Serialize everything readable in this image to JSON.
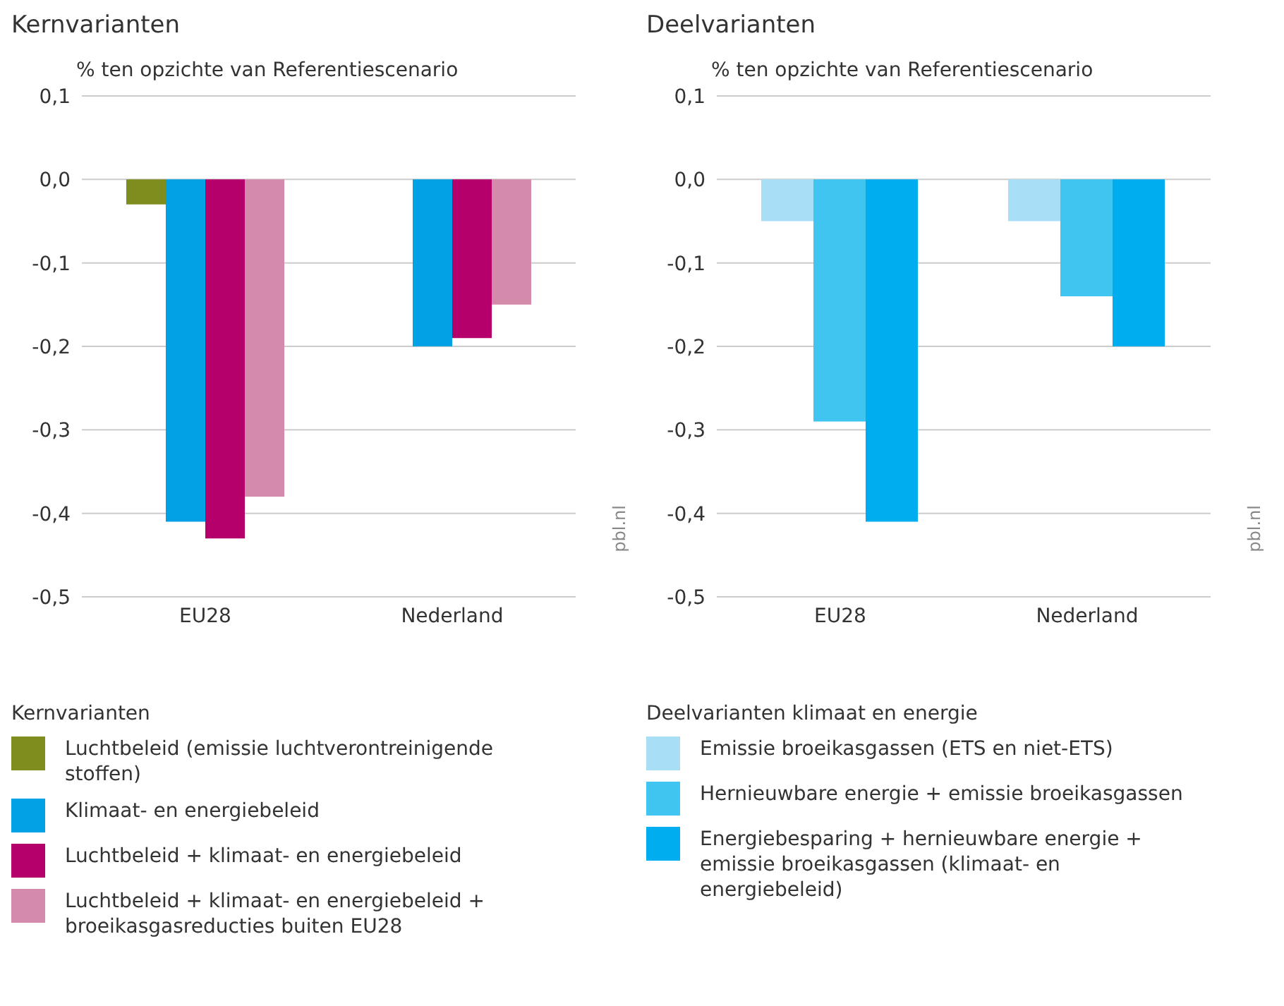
{
  "chart_data": [
    {
      "type": "bar",
      "title": "Kernvarianten",
      "ylabel": "% ten opzichte van Referentiescenario",
      "categories": [
        "EU28",
        "Nederland"
      ],
      "ylim": [
        -0.5,
        0.1
      ],
      "yticks": [
        {
          "value": -0.5,
          "label": "-0,5"
        },
        {
          "value": -0.4,
          "label": "-0,4"
        },
        {
          "value": -0.3,
          "label": "-0,3"
        },
        {
          "value": -0.2,
          "label": "-0,2"
        },
        {
          "value": -0.1,
          "label": "-0,1"
        },
        {
          "value": 0,
          "label": "0,0"
        },
        {
          "value": 0.1,
          "label": "0,1"
        }
      ],
      "grid": "y",
      "legend": "bottom",
      "legend_title": "Kernvarianten",
      "annotations": [
        "pbl.nl"
      ],
      "series": [
        {
          "name": "Luchtbeleid (emissie luchtverontreinigende stoffen)",
          "color": "#7f8c1e",
          "values": [
            -0.03,
            null
          ]
        },
        {
          "name": "Klimaat- en energiebeleid",
          "color": "#00a2e5",
          "values": [
            -0.41,
            -0.2
          ]
        },
        {
          "name": "Luchtbeleid + klimaat- en energiebeleid",
          "color": "#b5006b",
          "values": [
            -0.43,
            -0.19
          ]
        },
        {
          "name": "Luchtbeleid + klimaat- en energiebeleid + broeikasgasreducties buiten EU28",
          "color": "#d48aab",
          "values": [
            -0.38,
            -0.15
          ]
        }
      ]
    },
    {
      "type": "bar",
      "title": "Deelvarianten",
      "ylabel": "% ten opzichte van Referentiescenario",
      "categories": [
        "EU28",
        "Nederland"
      ],
      "ylim": [
        -0.5,
        0.1
      ],
      "yticks": [
        {
          "value": -0.5,
          "label": "-0,5"
        },
        {
          "value": -0.4,
          "label": "-0,4"
        },
        {
          "value": -0.3,
          "label": "-0,3"
        },
        {
          "value": -0.2,
          "label": "-0,2"
        },
        {
          "value": -0.1,
          "label": "-0,1"
        },
        {
          "value": 0,
          "label": "0,0"
        },
        {
          "value": 0.1,
          "label": "0,1"
        }
      ],
      "grid": "y",
      "legend": "bottom",
      "legend_title": "Deelvarianten klimaat en energie",
      "annotations": [
        "pbl.nl"
      ],
      "series": [
        {
          "name": "Emissie broeikasgassen (ETS en niet-ETS)",
          "color": "#a8dff7",
          "values": [
            -0.05,
            -0.05
          ]
        },
        {
          "name": "Hernieuwbare energie + emissie broeikasgassen",
          "color": "#40c4f0",
          "values": [
            -0.29,
            -0.14
          ]
        },
        {
          "name": "Energiebesparing + hernieuwbare energie + emissie broeikasgassen (klimaat- en energiebeleid)",
          "color": "#00aeef",
          "values": [
            -0.41,
            -0.2
          ]
        }
      ]
    }
  ]
}
